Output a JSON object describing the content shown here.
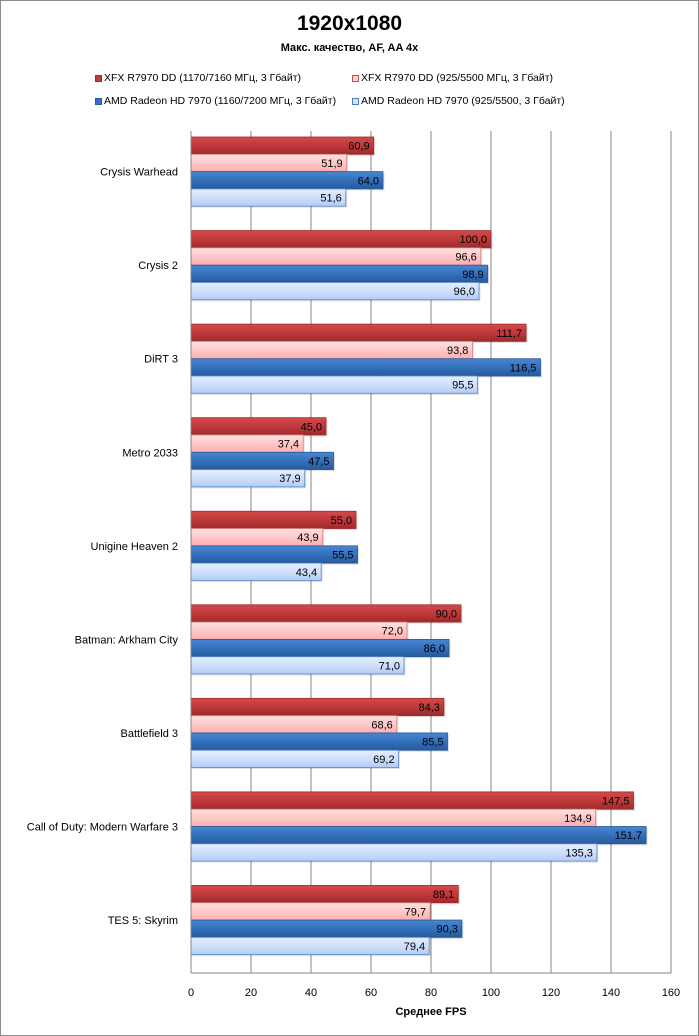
{
  "chart_data": {
    "type": "bar",
    "orientation": "horizontal",
    "title": "1920x1080",
    "subtitle": "Макс.  качество,  AF, AA 4x",
    "xlabel": "Среднее FPS",
    "ylabel": "",
    "xlim": [
      0,
      160
    ],
    "xticks": [
      0,
      20,
      40,
      60,
      80,
      100,
      120,
      140,
      160
    ],
    "xtick_labels": [
      "0",
      "20",
      "40",
      "60",
      "80",
      "100",
      "120",
      "140",
      "160"
    ],
    "grid": "vertical",
    "legend_position": "top",
    "categories": [
      "Crysis Warhead",
      "Crysis 2",
      "DiRT 3",
      "Metro 2033",
      "Unigine Heaven 2",
      "Batman: Arkham City",
      "Battlefield 3",
      "Call of Duty: Modern Warfare 3",
      "TES 5: Skyrim"
    ],
    "series": [
      {
        "name": "XFX R7970 DD (1170/7160 МГц, 3 Гбайт)",
        "color": "#c0393b",
        "labels": [
          "60,9",
          "100,0",
          "111,7",
          "45,0",
          "55,0",
          "90,0",
          "84,3",
          "147,5",
          "89,1"
        ],
        "values": [
          60.9,
          100.0,
          111.7,
          45.0,
          55.0,
          90.0,
          84.3,
          147.5,
          89.1
        ]
      },
      {
        "name": "XFX R7970 DD (925/5500 МГц, 3 Гбайт)",
        "color": "#ffc4c4",
        "labels": [
          "51,9",
          "96,6",
          "93,8",
          "37,4",
          "43,9",
          "72,0",
          "68,6",
          "134,9",
          "79,7"
        ],
        "values": [
          51.9,
          96.6,
          93.8,
          37.4,
          43.9,
          72.0,
          68.6,
          134.9,
          79.7
        ]
      },
      {
        "name": "AMD Radeon HD 7970 (1160/7200 МГц, 3 Гбайт)",
        "color": "#3470bb",
        "labels": [
          "64,0",
          "98,9",
          "116,5",
          "47,5",
          "55,5",
          "86,0",
          "85,5",
          "151,7",
          "90,3"
        ],
        "values": [
          64.0,
          98.9,
          116.5,
          47.5,
          55.5,
          86.0,
          85.5,
          151.7,
          90.3
        ]
      },
      {
        "name": "AMD Radeon HD 7970 (925/5500, 3 Гбайт)",
        "color": "#c9dcfb",
        "labels": [
          "51,6",
          "96,0",
          "95,5",
          "37,9",
          "43,4",
          "71,0",
          "69,2",
          "135,3",
          "79,4"
        ],
        "values": [
          51.6,
          96.0,
          95.5,
          37.9,
          43.4,
          71.0,
          69.2,
          135.3,
          79.4
        ]
      }
    ]
  }
}
